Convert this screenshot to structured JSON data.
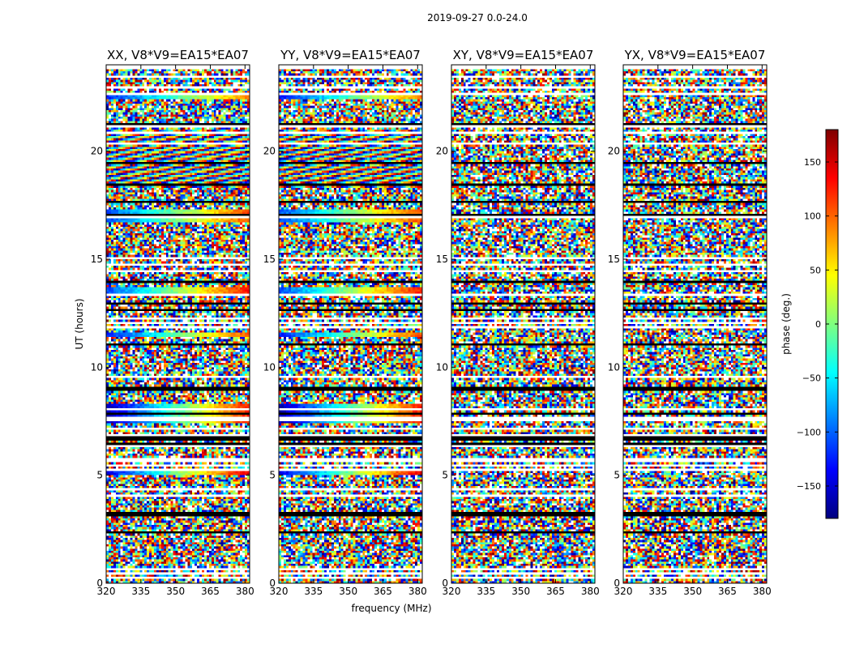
{
  "chart_data": {
    "type": "heatmap",
    "suptitle": "2019-09-27 0.0-24.0",
    "panels": [
      {
        "title": "XX, V8*V9=EA15*EA07",
        "pol": "XX"
      },
      {
        "title": "YY, V8*V9=EA15*EA07",
        "pol": "YY"
      },
      {
        "title": "XY, V8*V9=EA15*EA07",
        "pol": "XY"
      },
      {
        "title": "YX, V8*V9=EA15*EA07",
        "pol": "YX"
      }
    ],
    "xlabel": "frequency (MHz)",
    "ylabel": "UT (hours)",
    "xlim": [
      320,
      382
    ],
    "ylim": [
      0,
      24
    ],
    "xticks": [
      320,
      335,
      350,
      365,
      380
    ],
    "yticks": [
      0,
      5,
      10,
      15,
      20
    ],
    "colorbar": {
      "label": "phase (deg.)",
      "vmin": -180,
      "vmax": 180,
      "ticks": [
        -150,
        -100,
        -50,
        0,
        50,
        100,
        150
      ],
      "colormap": "jet",
      "colors": [
        "#00007f",
        "#0000ff",
        "#007fff",
        "#00ffff",
        "#7fff7f",
        "#ffff00",
        "#ff7f00",
        "#ff0000",
        "#7f0000"
      ]
    },
    "gap_color": "#ffffff",
    "flag_color": "#000000"
  }
}
